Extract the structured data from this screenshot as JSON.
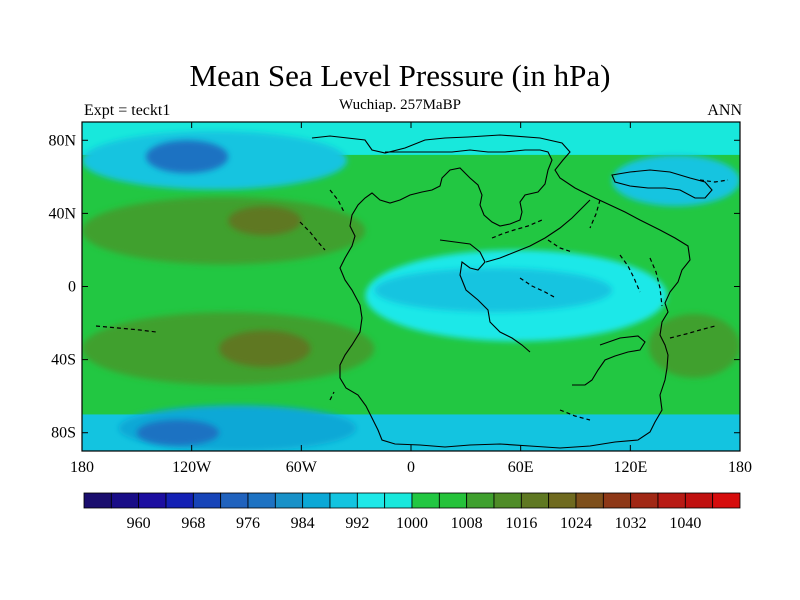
{
  "title": "Mean Sea Level Pressure (in hPa)",
  "subtitle": "Wuchiap. 257MaBP",
  "left_label": "Expt = teckt1",
  "right_label": "ANN",
  "axes": {
    "x_ticks": [
      "180",
      "120W",
      "60W",
      "0",
      "60E",
      "120E",
      "180"
    ],
    "x_tick_values": [
      -180,
      -120,
      -60,
      0,
      60,
      120,
      180
    ],
    "y_ticks": [
      "80N",
      "40N",
      "0",
      "40S",
      "80S"
    ],
    "y_tick_values": [
      80,
      40,
      0,
      -40,
      -80
    ],
    "lon_range": [
      -180,
      180
    ],
    "lat_range": [
      -90,
      90
    ]
  },
  "colorbar": {
    "labels": [
      "960",
      "968",
      "976",
      "984",
      "992",
      "1000",
      "1008",
      "1016",
      "1024",
      "1032",
      "1040"
    ],
    "label_values": [
      960,
      968,
      976,
      984,
      992,
      1000,
      1008,
      1016,
      1024,
      1032,
      1040
    ],
    "levels": [
      956,
      960,
      964,
      968,
      972,
      976,
      980,
      984,
      988,
      992,
      996,
      1000,
      1004,
      1008,
      1012,
      1016,
      1020,
      1024,
      1028,
      1032,
      1036,
      1040,
      1044
    ],
    "colors": [
      "#1a0e6e",
      "#190d87",
      "#1c0ea0",
      "#1320b4",
      "#1744b8",
      "#2062bd",
      "#1d72c2",
      "#1891c8",
      "#0ba8d6",
      "#13c4e0",
      "#1ee8e8",
      "#18e8dc",
      "#22c742",
      "#25c23a",
      "#3fa02e",
      "#4f8c27",
      "#5f7822",
      "#6f6a1f",
      "#7e4f1b",
      "#8e3817",
      "#a12815",
      "#b81a14",
      "#c0100f",
      "#d60c0c"
    ]
  },
  "map_data": {
    "type": "filled-contour",
    "variable": "mean sea level pressure",
    "units": "hPa",
    "projection": "cylindrical-equidistant",
    "background_level": 1000,
    "regions": [
      {
        "lon": [
          -180,
          180
        ],
        "lat": [
          -70,
          -90
        ],
        "level": 988
      },
      {
        "lon": [
          -180,
          180
        ],
        "lat": [
          72,
          90
        ],
        "level": 996
      },
      {
        "lon": [
          -180,
          -35
        ],
        "lat": [
          85,
          53
        ],
        "level": 988
      },
      {
        "lon": [
          -145,
          -100
        ],
        "lat": [
          80,
          62
        ],
        "level": 976
      },
      {
        "lon": [
          -160,
          -30
        ],
        "lat": [
          -65,
          -90
        ],
        "level": 984
      },
      {
        "lon": [
          -150,
          -105
        ],
        "lat": [
          -73,
          -87
        ],
        "level": 976
      },
      {
        "lon": [
          -180,
          -25
        ],
        "lat": [
          49,
          12
        ],
        "level": 1008
      },
      {
        "lon": [
          -100,
          -60
        ],
        "lat": [
          44,
          28
        ],
        "level": 1016
      },
      {
        "lon": [
          -180,
          -20
        ],
        "lat": [
          -14,
          -54
        ],
        "level": 1008
      },
      {
        "lon": [
          -105,
          -55
        ],
        "lat": [
          -24,
          -44
        ],
        "level": 1016
      },
      {
        "lon": [
          -25,
          140
        ],
        "lat": [
          20,
          -30
        ],
        "level": 992
      },
      {
        "lon": [
          -20,
          110
        ],
        "lat": [
          10,
          -14
        ],
        "level": 988
      },
      {
        "lon": [
          130,
          180
        ],
        "lat": [
          -15,
          -50
        ],
        "level": 1008
      },
      {
        "lon": [
          110,
          180
        ],
        "lat": [
          72,
          44
        ],
        "level": 988
      }
    ]
  }
}
